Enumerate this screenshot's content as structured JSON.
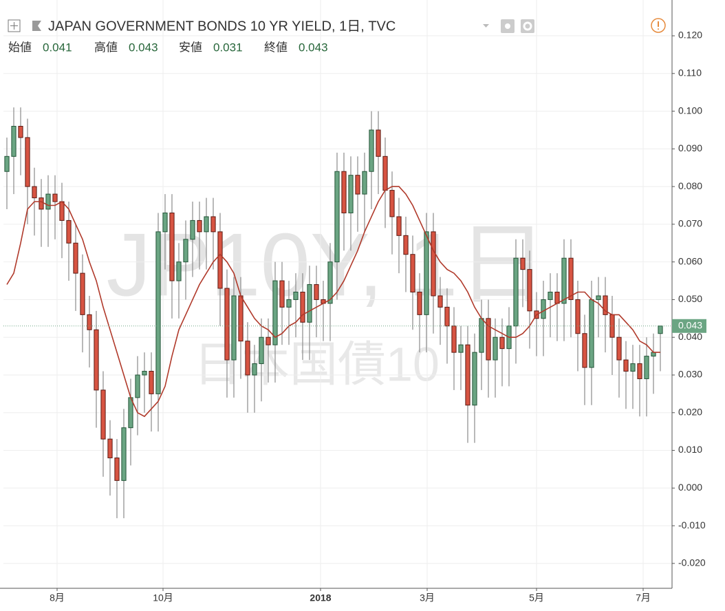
{
  "chart_data": {
    "type": "candlestick",
    "title": "JAPAN GOVERNMENT BONDS 10 YR YIELD, 1日, TVC",
    "watermark": "JP10Y, 1日",
    "watermark_subtitle": "日本国債10",
    "ohlc_names": [
      "始値",
      "高値",
      "安値",
      "終値"
    ],
    "up_color": "#6ba583",
    "down_color": "#d75442",
    "wick_color": "#8a8a8a",
    "ma_color": "#b0392a",
    "last_color": "#6ba583",
    "grid": true,
    "xlim": [
      -0.5,
      96.7
    ],
    "xticks": [
      {
        "value": 7.3,
        "label": "8月"
      },
      {
        "value": 22.7,
        "label": "10月"
      },
      {
        "value": 45.6,
        "label": "2018"
      },
      {
        "value": 61.1,
        "label": "3月"
      },
      {
        "value": 77,
        "label": "5月"
      },
      {
        "value": 92.5,
        "label": "7月"
      }
    ],
    "ylim": [
      -0.0266,
      0.1295
    ],
    "yticks": [
      {
        "value": -0.02,
        "label": "-0.020"
      },
      {
        "value": -0.01,
        "label": "-0.010"
      },
      {
        "value": 0,
        "label": "0.000"
      },
      {
        "value": 0.01,
        "label": "0.010"
      },
      {
        "value": 0.02,
        "label": "0.020"
      },
      {
        "value": 0.03,
        "label": "0.030"
      },
      {
        "value": 0.04,
        "label": "0.040"
      },
      {
        "value": 0.05,
        "label": "0.050"
      },
      {
        "value": 0.06,
        "label": "0.060"
      },
      {
        "value": 0.07,
        "label": "0.070"
      },
      {
        "value": 0.08,
        "label": "0.080"
      },
      {
        "value": 0.09,
        "label": "0.090"
      },
      {
        "value": 0.1,
        "label": "0.100"
      },
      {
        "value": 0.11,
        "label": "0.110"
      },
      {
        "value": 0.12,
        "label": "0.120"
      }
    ],
    "open": [
      0.084,
      0.088,
      0.096,
      0.093,
      0.08,
      0.077,
      0.074,
      0.078,
      0.076,
      0.071,
      0.065,
      0.057,
      0.046,
      0.042,
      0.026,
      0.013,
      0.008,
      0.002,
      0.016,
      0.024,
      0.03,
      0.031,
      0.025,
      0.068,
      0.073,
      0.055,
      0.06,
      0.066,
      0.071,
      0.068,
      0.072,
      0.068,
      0.053,
      0.034,
      0.051,
      0.039,
      0.03,
      0.033,
      0.04,
      0.038,
      0.055,
      0.048,
      0.05,
      0.052,
      0.044,
      0.054,
      0.05,
      0.049,
      0.06,
      0.084,
      0.073,
      0.083,
      0.078,
      0.084,
      0.095,
      0.088,
      0.079,
      0.072,
      0.067,
      0.062,
      0.052,
      0.046,
      0.068,
      0.051,
      0.048,
      0.043,
      0.036,
      0.038,
      0.022,
      0.036,
      0.045,
      0.034,
      0.04,
      0.037,
      0.043,
      0.061,
      0.058,
      0.047,
      0.045,
      0.05,
      0.052,
      0.049,
      0.061,
      0.05,
      0.041,
      0.032,
      0.05,
      0.051,
      0.046,
      0.04,
      0.034,
      0.031,
      0.033,
      0.029,
      0.035,
      0.041
    ],
    "high": [
      0.093,
      0.101,
      0.101,
      0.098,
      0.085,
      0.082,
      0.083,
      0.083,
      0.081,
      0.076,
      0.07,
      0.062,
      0.051,
      0.047,
      0.031,
      0.018,
      0.013,
      0.021,
      0.029,
      0.035,
      0.036,
      0.036,
      0.073,
      0.078,
      0.078,
      0.065,
      0.071,
      0.076,
      0.076,
      0.077,
      0.077,
      0.073,
      0.058,
      0.056,
      0.056,
      0.044,
      0.038,
      0.045,
      0.045,
      0.06,
      0.06,
      0.055,
      0.057,
      0.057,
      0.059,
      0.059,
      0.055,
      0.065,
      0.089,
      0.089,
      0.088,
      0.088,
      0.089,
      0.1,
      0.1,
      0.093,
      0.084,
      0.077,
      0.072,
      0.067,
      0.057,
      0.073,
      0.073,
      0.056,
      0.053,
      0.048,
      0.043,
      0.043,
      0.041,
      0.05,
      0.05,
      0.045,
      0.045,
      0.048,
      0.066,
      0.066,
      0.063,
      0.052,
      0.055,
      0.057,
      0.057,
      0.066,
      0.066,
      0.055,
      0.046,
      0.055,
      0.056,
      0.056,
      0.051,
      0.045,
      0.039,
      0.038,
      0.038,
      0.04,
      0.041,
      0.043
    ],
    "low": [
      0.074,
      0.078,
      0.083,
      0.07,
      0.067,
      0.064,
      0.064,
      0.066,
      0.061,
      0.055,
      0.047,
      0.036,
      0.032,
      0.016,
      0.003,
      -0.002,
      -0.008,
      -0.008,
      0.006,
      0.014,
      0.02,
      0.015,
      0.015,
      0.058,
      0.045,
      0.045,
      0.05,
      0.056,
      0.058,
      0.058,
      0.058,
      0.043,
      0.024,
      0.024,
      0.029,
      0.02,
      0.02,
      0.023,
      0.028,
      0.028,
      0.038,
      0.038,
      0.04,
      0.034,
      0.034,
      0.04,
      0.039,
      0.039,
      0.05,
      0.063,
      0.063,
      0.068,
      0.068,
      0.074,
      0.078,
      0.069,
      0.062,
      0.057,
      0.052,
      0.042,
      0.036,
      0.036,
      0.041,
      0.038,
      0.033,
      0.026,
      0.026,
      0.012,
      0.012,
      0.026,
      0.024,
      0.024,
      0.027,
      0.027,
      0.033,
      0.048,
      0.037,
      0.035,
      0.035,
      0.04,
      0.039,
      0.039,
      0.04,
      0.031,
      0.022,
      0.022,
      0.04,
      0.036,
      0.03,
      0.024,
      0.021,
      0.021,
      0.019,
      0.019,
      0.025,
      0.031
    ],
    "close": [
      0.088,
      0.096,
      0.093,
      0.08,
      0.077,
      0.074,
      0.078,
      0.076,
      0.071,
      0.065,
      0.057,
      0.046,
      0.042,
      0.026,
      0.013,
      0.008,
      0.002,
      0.016,
      0.024,
      0.03,
      0.031,
      0.025,
      0.068,
      0.073,
      0.055,
      0.06,
      0.066,
      0.071,
      0.068,
      0.072,
      0.068,
      0.053,
      0.034,
      0.051,
      0.039,
      0.03,
      0.033,
      0.04,
      0.038,
      0.055,
      0.048,
      0.05,
      0.052,
      0.044,
      0.054,
      0.05,
      0.049,
      0.06,
      0.084,
      0.073,
      0.083,
      0.078,
      0.084,
      0.095,
      0.088,
      0.079,
      0.072,
      0.067,
      0.062,
      0.052,
      0.046,
      0.068,
      0.051,
      0.048,
      0.043,
      0.036,
      0.038,
      0.022,
      0.036,
      0.045,
      0.034,
      0.04,
      0.037,
      0.043,
      0.061,
      0.058,
      0.047,
      0.045,
      0.05,
      0.052,
      0.049,
      0.061,
      0.05,
      0.041,
      0.032,
      0.05,
      0.051,
      0.046,
      0.04,
      0.034,
      0.031,
      0.033,
      0.029,
      0.035,
      0.036,
      0.043
    ],
    "ma": [
      0.054,
      0.057,
      0.065,
      0.074,
      0.076,
      0.076,
      0.075,
      0.075,
      0.076,
      0.074,
      0.07,
      0.066,
      0.06,
      0.055,
      0.048,
      0.042,
      0.036,
      0.03,
      0.024,
      0.02,
      0.019,
      0.021,
      0.023,
      0.027,
      0.035,
      0.042,
      0.046,
      0.05,
      0.054,
      0.057,
      0.06,
      0.062,
      0.06,
      0.057,
      0.051,
      0.048,
      0.045,
      0.043,
      0.042,
      0.04,
      0.041,
      0.043,
      0.044,
      0.046,
      0.047,
      0.048,
      0.049,
      0.05,
      0.052,
      0.055,
      0.059,
      0.063,
      0.068,
      0.072,
      0.076,
      0.079,
      0.08,
      0.08,
      0.078,
      0.075,
      0.071,
      0.067,
      0.063,
      0.06,
      0.058,
      0.057,
      0.055,
      0.052,
      0.048,
      0.045,
      0.043,
      0.042,
      0.041,
      0.04,
      0.04,
      0.041,
      0.043,
      0.046,
      0.047,
      0.048,
      0.049,
      0.05,
      0.051,
      0.052,
      0.052,
      0.05,
      0.049,
      0.047,
      0.046,
      0.046,
      0.044,
      0.042,
      0.039,
      0.038,
      0.036,
      0.036
    ]
  }
}
